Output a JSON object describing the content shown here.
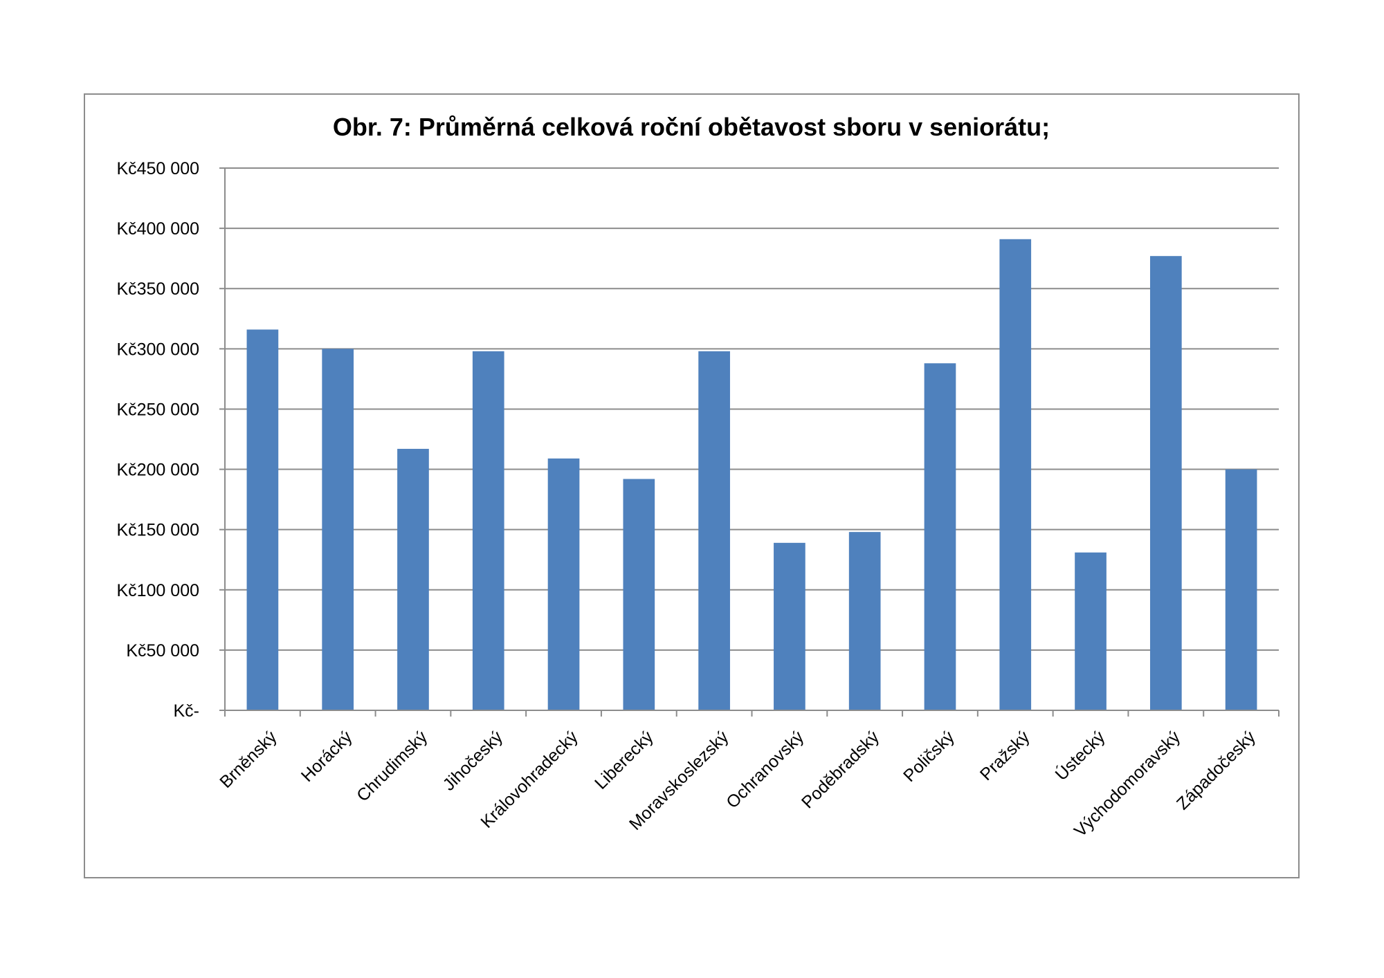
{
  "chart_data": {
    "type": "bar",
    "title": "Obr. 7: Průměrná celková roční obětavost sboru v seniorátu;",
    "xlabel": "",
    "ylabel": "",
    "categories": [
      "Brněnský",
      "Horácký",
      "Chrudimský",
      "Jihočeský",
      "Královohradecký",
      "Liberecký",
      "Moravskoslezský",
      "Ochranovský",
      "Poděbradský",
      "Poličský",
      "Pražský",
      "Ústecký",
      "Východomoravský",
      "Západočeský"
    ],
    "values": [
      316000,
      300000,
      217000,
      298000,
      209000,
      192000,
      298000,
      139000,
      148000,
      288000,
      391000,
      131000,
      377000,
      200000
    ],
    "ylim": [
      0,
      450000
    ],
    "yticks": [
      0,
      50000,
      100000,
      150000,
      200000,
      250000,
      300000,
      350000,
      400000,
      450000
    ],
    "ytick_labels": [
      "Kč-",
      "Kč50 000",
      "Kč100 000",
      "Kč150 000",
      "Kč200 000",
      "Kč250 000",
      "Kč300 000",
      "Kč350 000",
      "Kč400 000",
      "Kč450 000"
    ],
    "grid": true,
    "legend": "none",
    "bar_color": "#4f81bd",
    "grid_color": "#8c8c8c",
    "axis_color": "#8c8c8c"
  }
}
